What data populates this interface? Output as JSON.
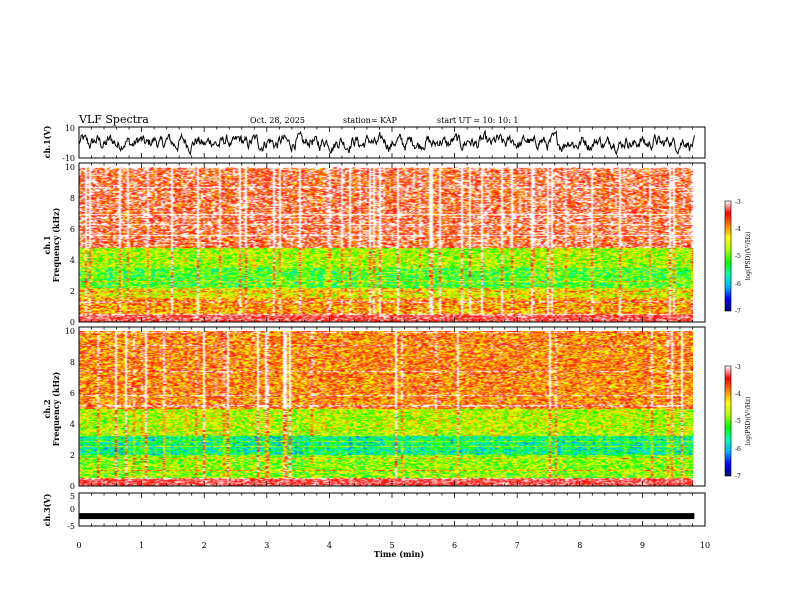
{
  "header": {
    "title": "VLF Spectra",
    "date": "Oct. 28, 2025",
    "station": "station= KAP",
    "start": "start  UT  =   10: 10: 1"
  },
  "chart_data": [
    {
      "type": "line",
      "name": "ch1-waveform",
      "ylabel": "ch.1(V)",
      "ylim": [
        -10,
        10
      ],
      "yticks": [
        "10",
        "-10"
      ],
      "x_range_min": [
        0,
        9.83
      ],
      "description_series": "noisy voltage trace centered near 0 V, amplitude mostly within -5 to +5 V"
    },
    {
      "type": "heatmap",
      "name": "ch1-spectrogram",
      "ylabel": "ch.1",
      "ylabel2": "Frequency  (kHz)",
      "ylim": [
        0,
        10
      ],
      "yticks": [
        "0",
        "2",
        "4",
        "6",
        "8",
        "10"
      ],
      "x_range_min": [
        0,
        9.83
      ],
      "colorbar": {
        "label": "log(PSD)(V²/Hz)",
        "range": [
          -7,
          -3
        ],
        "ticks": [
          "-3",
          "-4",
          "-5",
          "-6",
          "-7"
        ]
      },
      "bands_khz": [
        {
          "from": 0,
          "to": 0.5,
          "level": -3.2
        },
        {
          "from": 0.5,
          "to": 1.5,
          "level": -4.2
        },
        {
          "from": 1.5,
          "to": 2.2,
          "level": -4.6
        },
        {
          "from": 2.2,
          "to": 3.5,
          "level": -5.3
        },
        {
          "from": 3.5,
          "to": 4.8,
          "level": -4.9
        },
        {
          "from": 4.8,
          "to": 10,
          "level": -3.6
        }
      ]
    },
    {
      "type": "heatmap",
      "name": "ch2-spectrogram",
      "ylabel": "ch.2",
      "ylabel2": "Frequency  (kHz)",
      "ylim": [
        0,
        10
      ],
      "yticks": [
        "0",
        "2",
        "4",
        "6",
        "8",
        "10"
      ],
      "x_range_min": [
        0,
        9.83
      ],
      "colorbar": {
        "label": "log(PSD)(V²/Hz)",
        "range": [
          -7,
          -3
        ],
        "ticks": [
          "-3",
          "-4",
          "-5",
          "-6",
          "-7"
        ]
      },
      "bands_khz": [
        {
          "from": 0,
          "to": 0.5,
          "level": -3.4
        },
        {
          "from": 0.5,
          "to": 2.0,
          "level": -5.0
        },
        {
          "from": 2.0,
          "to": 3.2,
          "level": -5.7
        },
        {
          "from": 3.2,
          "to": 5.0,
          "level": -4.8
        },
        {
          "from": 5.0,
          "to": 10,
          "level": -4.0
        }
      ]
    },
    {
      "type": "line",
      "name": "ch3-trace",
      "ylabel": "ch.3(V)",
      "ylim": [
        -5,
        5
      ],
      "yticks": [
        "5",
        "0",
        "-5"
      ],
      "x_range_min": [
        0,
        9.83
      ],
      "constant_level": -2
    }
  ],
  "xaxis": {
    "label": "Time  (min)",
    "range": [
      0,
      10
    ],
    "ticks": [
      "0",
      "1",
      "2",
      "3",
      "4",
      "5",
      "6",
      "7",
      "8",
      "9",
      "10"
    ]
  },
  "colors": {
    "cmap": [
      "#000080",
      "#0000ff",
      "#00b4ff",
      "#00ffb4",
      "#00ff00",
      "#b4ff00",
      "#ffff00",
      "#ff8000",
      "#ff0000",
      "#ffffff"
    ]
  }
}
